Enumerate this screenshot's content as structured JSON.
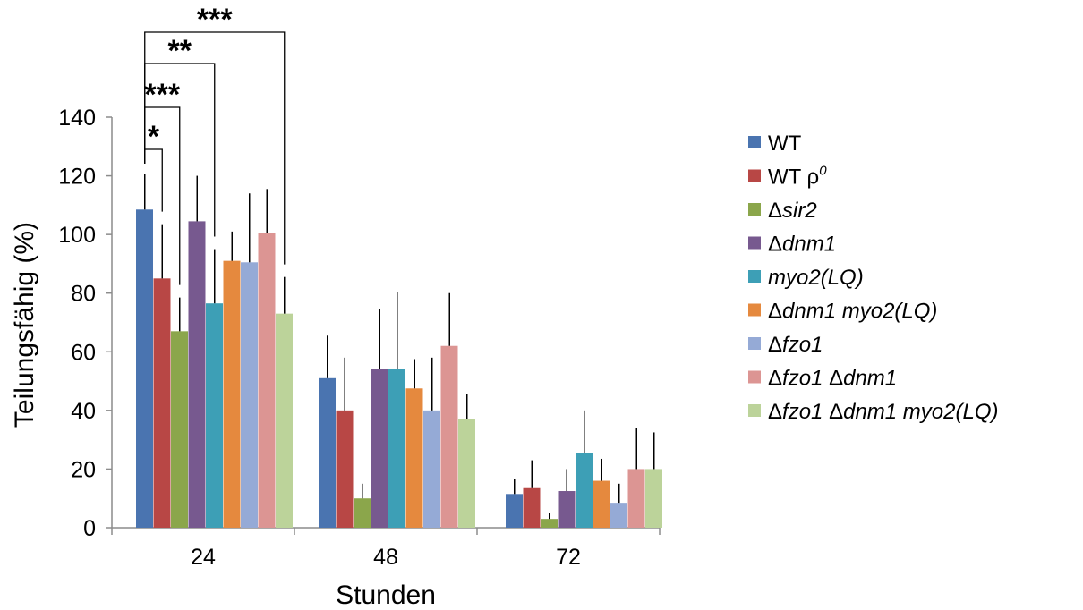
{
  "chart_data": {
    "type": "bar",
    "title": "",
    "xlabel": "Stunden",
    "ylabel": "Teilungsfähig (%)",
    "ylim": [
      0,
      140
    ],
    "yticks": [
      0,
      20,
      40,
      60,
      80,
      100,
      120,
      140
    ],
    "categories": [
      "24",
      "48",
      "72"
    ],
    "grid": false,
    "legend_position": "right",
    "series": [
      {
        "name": "WT",
        "color": "#4a74b0",
        "values": [
          108.5,
          51,
          11.5
        ],
        "errors": [
          12,
          14.5,
          5
        ]
      },
      {
        "name": "WT ρ0",
        "name_parts": [
          {
            "t": "WT ρ",
            "s": "normal"
          },
          {
            "t": "0",
            "s": "sup"
          }
        ],
        "color": "#b84745",
        "values": [
          85,
          40,
          13.5
        ],
        "errors": [
          18.5,
          18,
          9.5
        ]
      },
      {
        "name": "Δsir2",
        "name_parts": [
          {
            "t": "Δ",
            "s": "normal"
          },
          {
            "t": "sir2",
            "s": "italic"
          }
        ],
        "color": "#8ba64b",
        "values": [
          67,
          10,
          3
        ],
        "errors": [
          11.5,
          5,
          2
        ]
      },
      {
        "name": "Δdnm1",
        "name_parts": [
          {
            "t": "Δ",
            "s": "normal"
          },
          {
            "t": "dnm1",
            "s": "italic"
          }
        ],
        "color": "#77598f",
        "values": [
          104.5,
          54,
          12.5
        ],
        "errors": [
          15.5,
          20.5,
          7.5
        ]
      },
      {
        "name": "myo2(LQ)",
        "name_parts": [
          {
            "t": "myo2(LQ)",
            "s": "italic"
          }
        ],
        "color": "#3d9fb6",
        "values": [
          76.5,
          54,
          25.5
        ],
        "errors": [
          18.5,
          26.5,
          14.5
        ]
      },
      {
        "name": "Δdnm1 myo2(LQ)",
        "name_parts": [
          {
            "t": "Δ",
            "s": "normal"
          },
          {
            "t": "dnm1 myo2(LQ)",
            "s": "italic"
          }
        ],
        "color": "#e5893e",
        "values": [
          91,
          47.5,
          16
        ],
        "errors": [
          10,
          10,
          7.5
        ]
      },
      {
        "name": "Δfzo1",
        "name_parts": [
          {
            "t": "Δ",
            "s": "normal"
          },
          {
            "t": "fzo1",
            "s": "italic"
          }
        ],
        "color": "#95aad6",
        "values": [
          90.5,
          40,
          8.5
        ],
        "errors": [
          23.5,
          18,
          6.5
        ]
      },
      {
        "name": "Δfzo1 Δdnm1",
        "name_parts": [
          {
            "t": "Δ",
            "s": "normal"
          },
          {
            "t": "fzo1 ",
            "s": "italic"
          },
          {
            "t": "Δ",
            "s": "normal"
          },
          {
            "t": "dnm1",
            "s": "italic"
          }
        ],
        "color": "#dc9593",
        "values": [
          100.5,
          62,
          20
        ],
        "errors": [
          15,
          18,
          14
        ]
      },
      {
        "name": "Δfzo1 Δdnm1 myo2(LQ)",
        "name_parts": [
          {
            "t": "Δ",
            "s": "normal"
          },
          {
            "t": "fzo1 ",
            "s": "italic"
          },
          {
            "t": "Δ",
            "s": "normal"
          },
          {
            "t": "dnm1 myo2(LQ)",
            "s": "italic"
          }
        ],
        "color": "#bcd39a",
        "values": [
          73,
          37,
          20
        ],
        "errors": [
          12.5,
          8.5,
          12.5
        ]
      }
    ],
    "annotations": [
      {
        "category": "24",
        "from_series": 0,
        "to_series": 1,
        "label": "*",
        "level": 0
      },
      {
        "category": "24",
        "from_series": 0,
        "to_series": 2,
        "label": "***",
        "level": 1
      },
      {
        "category": "24",
        "from_series": 0,
        "to_series": 4,
        "label": "**",
        "level": 2
      },
      {
        "category": "24",
        "from_series": 0,
        "to_series": 8,
        "label": "***",
        "level": 3
      }
    ]
  }
}
